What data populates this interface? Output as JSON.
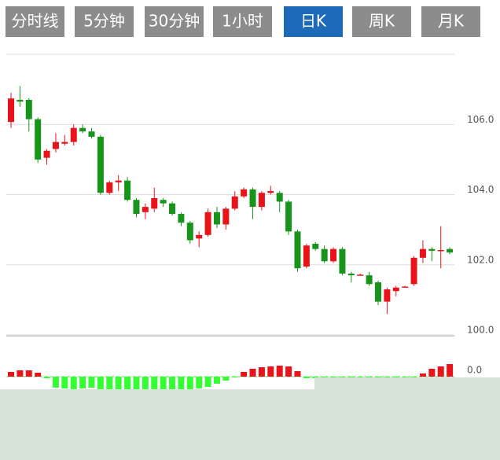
{
  "tabs": [
    "分时线",
    "5分钟",
    "30分钟",
    "1小时",
    "日K",
    "周K",
    "月K"
  ],
  "active_tab": 4,
  "chart_data": [
    {
      "type": "candlestick",
      "open": [
        106.07,
        106.7,
        106.7,
        106.15,
        105.05,
        105.3,
        105.45,
        105.5,
        105.9,
        105.8,
        105.65,
        104.05,
        104.35,
        104.4,
        103.85,
        103.5,
        103.6,
        103.85,
        103.75,
        103.45,
        103.2,
        102.75,
        102.85,
        103.5,
        103.15,
        103.6,
        103.95,
        104.15,
        103.65,
        104.05,
        104.05,
        103.8,
        102.95,
        101.95,
        102.6,
        102.45,
        102.1,
        102.45,
        101.75,
        101.7,
        101.7,
        101.5,
        100.95,
        101.25,
        101.37,
        101.45,
        102.2,
        102.45,
        102.4,
        102.45
      ],
      "high": [
        106.9,
        107.1,
        106.75,
        106.2,
        105.3,
        105.75,
        105.7,
        106.0,
        106.0,
        105.9,
        105.7,
        104.4,
        104.55,
        104.5,
        103.9,
        103.75,
        104.2,
        103.9,
        103.8,
        103.5,
        103.25,
        102.95,
        103.6,
        103.65,
        103.65,
        104.1,
        104.2,
        104.2,
        104.1,
        104.25,
        104.1,
        103.85,
        103.0,
        102.6,
        102.65,
        102.55,
        102.5,
        102.5,
        101.8,
        101.75,
        101.8,
        101.55,
        101.35,
        101.4,
        101.4,
        102.25,
        102.7,
        102.5,
        103.1,
        102.5
      ],
      "low": [
        105.9,
        106.5,
        105.8,
        104.9,
        104.85,
        105.2,
        105.4,
        105.4,
        105.75,
        105.6,
        104.0,
        104.0,
        104.1,
        103.8,
        103.35,
        103.3,
        103.5,
        103.65,
        103.4,
        103.1,
        102.6,
        102.5,
        102.8,
        103.05,
        103.0,
        103.55,
        103.9,
        103.3,
        103.55,
        104.0,
        103.5,
        102.85,
        101.8,
        101.9,
        102.4,
        102.05,
        102.05,
        101.7,
        101.5,
        101.7,
        101.4,
        100.85,
        100.6,
        101.1,
        101.35,
        101.4,
        102.05,
        102.1,
        101.9,
        102.3
      ],
      "close": [
        106.74,
        106.65,
        106.15,
        105.0,
        105.25,
        105.5,
        105.5,
        105.9,
        105.8,
        105.65,
        104.05,
        104.35,
        104.4,
        103.85,
        103.45,
        103.65,
        103.9,
        103.75,
        103.45,
        103.2,
        102.7,
        102.85,
        103.5,
        103.15,
        103.6,
        103.95,
        104.15,
        103.65,
        104.05,
        104.1,
        103.8,
        102.95,
        101.9,
        102.55,
        102.45,
        102.1,
        102.45,
        101.75,
        101.7,
        101.72,
        101.45,
        100.95,
        101.3,
        101.35,
        101.38,
        102.2,
        102.45,
        102.4,
        102.42,
        102.35
      ],
      "ylim": [
        100,
        108
      ],
      "yticks": [
        {
          "value": 100,
          "label": "100.0"
        },
        {
          "value": 102,
          "label": "102.0"
        },
        {
          "value": 104,
          "label": "104.0"
        },
        {
          "value": 106,
          "label": "106.0"
        }
      ],
      "grid": true,
      "up_color": "#e8141a",
      "down_color": "#17951a"
    },
    {
      "type": "bar",
      "values": [
        0.06,
        0.08,
        0.08,
        0.05,
        -0.02,
        -0.14,
        -0.15,
        -0.16,
        -0.15,
        -0.14,
        -0.16,
        -0.17,
        -0.17,
        -0.17,
        -0.17,
        -0.17,
        -0.17,
        -0.17,
        -0.17,
        -0.17,
        -0.16,
        -0.15,
        -0.13,
        -0.09,
        -0.05,
        -0.01,
        0.06,
        0.1,
        0.12,
        0.13,
        0.14,
        0.13,
        0.07,
        -0.02,
        -0.02,
        -0.01,
        -0.01,
        -0.01,
        -0.01,
        -0.01,
        -0.01,
        -0.01,
        -0.01,
        -0.01,
        -0.01,
        -0.01,
        0.04,
        0.1,
        0.13,
        0.16
      ],
      "ylim": [
        -0.5,
        0.5
      ],
      "yticks": [
        {
          "value": 0,
          "label": "0.0"
        }
      ],
      "up_color": "#e8141a",
      "down_color": "#33ff33"
    }
  ]
}
